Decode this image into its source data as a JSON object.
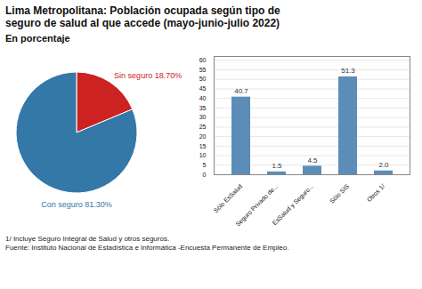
{
  "chart_data": [
    {
      "type": "pie",
      "title": "Lima Metropolitana: Población ocupada según tipo de\nseguro de salud al que accede (mayo-junio-julio 2022)",
      "subtitle": "En porcentaje",
      "categories": [
        "Sin seguro 18.70%",
        "Con seguro 81.30%"
      ],
      "values": [
        18.7,
        81.3
      ],
      "colors": [
        "#cc2222",
        "#3478a8"
      ]
    },
    {
      "type": "bar",
      "categories": [
        "Sólo EsSalud",
        "Seguro Privado de...",
        "EsSalud y Seguro...",
        "Sólo SIS",
        "Otros 1/"
      ],
      "values": [
        40.7,
        1.5,
        4.5,
        51.3,
        2.0
      ],
      "value_labels": [
        "40.7",
        "1.5",
        "4.5",
        "51.3",
        "2.0"
      ],
      "color": "#5b8db8",
      "ylim": [
        0,
        62
      ],
      "yticks": [
        0,
        5,
        10,
        15,
        20,
        25,
        30,
        35,
        40,
        45,
        50,
        55,
        60
      ],
      "grid": true,
      "data_labels": true,
      "annotations": [
        "1/ Incluye Seguro Integral de Salud y otros seguros.",
        "Fuente: Instituto Nacional de Estadística e Informática -Encuesta Permanente de Empleo."
      ]
    }
  ]
}
